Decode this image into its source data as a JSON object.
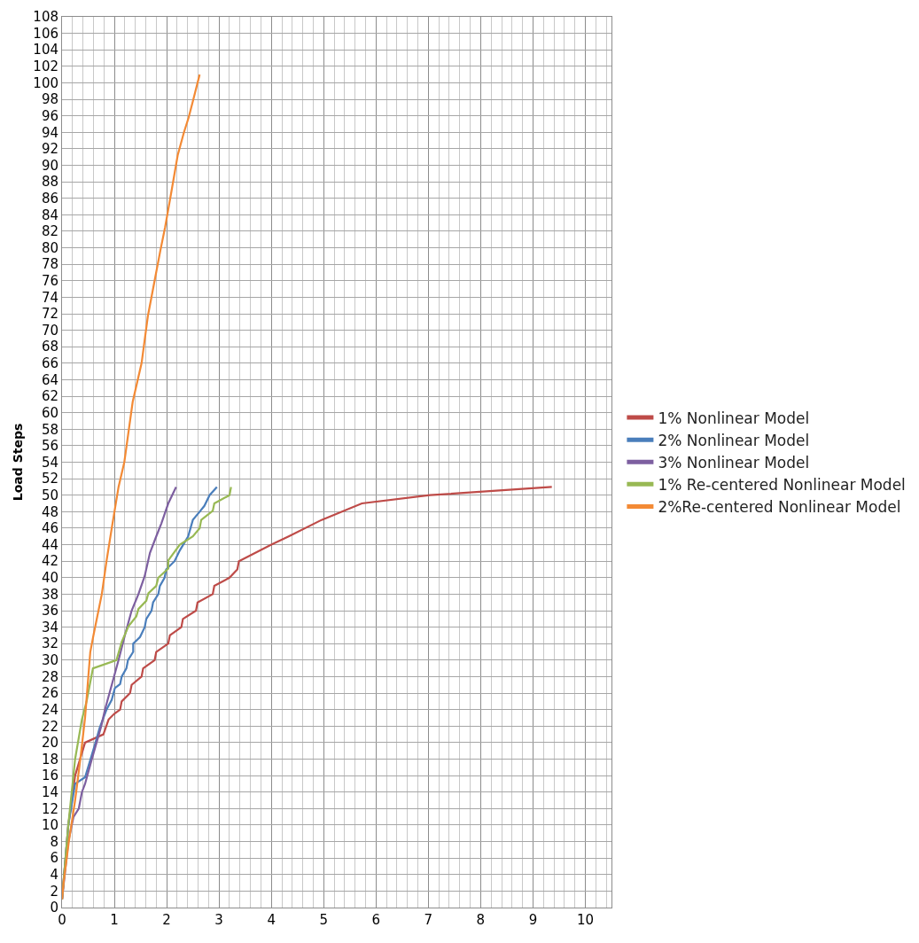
{
  "chart_data": {
    "type": "line",
    "ylabel": "Load Steps",
    "xlim": [
      0,
      10.5
    ],
    "ylim": [
      0,
      108
    ],
    "xticks": [
      0,
      {
        "value": 0.2,
        "label": null
      },
      {
        "value": 0.4,
        "label": null
      },
      {
        "value": 0.6,
        "label": null
      },
      {
        "value": 0.8,
        "label": null
      },
      1,
      {
        "value": 1.2,
        "label": null
      },
      {
        "value": 1.4,
        "label": null
      },
      {
        "value": 1.6,
        "label": null
      },
      {
        "value": 1.8,
        "label": null
      },
      2,
      {
        "value": 2.2,
        "label": null
      },
      {
        "value": 2.4,
        "label": null
      },
      {
        "value": 2.6,
        "label": null
      },
      {
        "value": 2.8,
        "label": null
      },
      3,
      {
        "value": 3.2,
        "label": null
      },
      {
        "value": 3.4,
        "label": null
      },
      {
        "value": 3.6,
        "label": null
      },
      {
        "value": 3.8,
        "label": null
      },
      4,
      {
        "value": 4.2,
        "label": null
      },
      {
        "value": 4.4,
        "label": null
      },
      {
        "value": 4.6,
        "label": null
      },
      {
        "value": 4.8,
        "label": null
      },
      5,
      {
        "value": 5.2,
        "label": null
      },
      {
        "value": 5.4,
        "label": null
      },
      {
        "value": 5.6,
        "label": null
      },
      {
        "value": 5.8,
        "label": null
      },
      6,
      {
        "value": 6.2,
        "label": null
      },
      {
        "value": 6.4,
        "label": null
      },
      {
        "value": 6.6,
        "label": null
      },
      {
        "value": 6.8,
        "label": null
      },
      7,
      {
        "value": 7.2,
        "label": null
      },
      {
        "value": 7.4,
        "label": null
      },
      {
        "value": 7.6,
        "label": null
      },
      {
        "value": 7.8,
        "label": null
      },
      8,
      {
        "value": 8.2,
        "label": null
      },
      {
        "value": 8.4,
        "label": null
      },
      {
        "value": 8.6,
        "label": null
      },
      {
        "value": 8.8,
        "label": null
      },
      9,
      {
        "value": 9.2,
        "label": null
      },
      {
        "value": 9.4,
        "label": null
      },
      {
        "value": 9.6,
        "label": null
      },
      {
        "value": 9.8,
        "label": null
      },
      10,
      {
        "value": 10.2,
        "label": null
      },
      {
        "value": 10.4,
        "label": null
      }
    ],
    "yticks": [
      0,
      2,
      4,
      6,
      8,
      10,
      12,
      14,
      16,
      18,
      20,
      22,
      24,
      26,
      28,
      30,
      32,
      34,
      36,
      38,
      40,
      42,
      44,
      46,
      48,
      50,
      52,
      54,
      56,
      58,
      60,
      62,
      64,
      66,
      68,
      70,
      72,
      74,
      76,
      78,
      80,
      82,
      84,
      86,
      88,
      90,
      92,
      94,
      96,
      98,
      100,
      102,
      104,
      106,
      108
    ],
    "grid": true,
    "legend": "right",
    "marker": "none",
    "line_style": "solid",
    "series": [
      {
        "name": "1% Nonlinear Model",
        "color": "#be4b48",
        "x": [
          0,
          0.12,
          0.25,
          0.44,
          0.79,
          0.89,
          1,
          1.11,
          1.14,
          1.3,
          1.33,
          1.52,
          1.55,
          1.77,
          1.8,
          2.03,
          2.06,
          2.28,
          2.31,
          2.56,
          2.59,
          2.88,
          2.91,
          3.2,
          3.35,
          3.38,
          4.0,
          4.33,
          4.96,
          5.73,
          7.03,
          9.36
        ],
        "values": [
          1,
          10,
          16,
          20,
          21,
          22.8,
          23.5,
          24,
          25,
          26,
          27,
          28,
          29,
          30,
          31,
          32,
          33,
          34,
          35,
          36,
          37,
          38,
          39,
          40,
          41,
          42,
          44,
          45,
          47,
          49,
          50,
          51
        ]
      },
      {
        "name": "2% Nonlinear Model",
        "color": "#4a7ebb",
        "x": [
          0,
          0.12,
          0.25,
          0.44,
          0.63,
          0.72,
          0.85,
          0.95,
          1.01,
          1.11,
          1.14,
          1.23,
          1.26,
          1.36,
          1.36,
          1.49,
          1.58,
          1.61,
          1.71,
          1.74,
          1.84,
          1.87,
          1.96,
          1.99,
          2.15,
          2.25,
          2.41,
          2.5,
          2.63,
          2.72,
          2.82,
          2.96
        ],
        "values": [
          1,
          10,
          15,
          15.8,
          19.8,
          21.8,
          24,
          25.2,
          26.6,
          27.1,
          28,
          29,
          30,
          31,
          32,
          32.8,
          34,
          35,
          36,
          37,
          38,
          39,
          40,
          41,
          42,
          43.3,
          45,
          47,
          48,
          48.7,
          50,
          51
        ]
      },
      {
        "name": "3% Nonlinear Model",
        "color": "#7d5fa0",
        "x": [
          0,
          0.12,
          0.22,
          0.32,
          0.38,
          0.44,
          0.57,
          0.66,
          0.75,
          0.82,
          0.95,
          1.08,
          1.2,
          1.33,
          1.46,
          1.58,
          1.68,
          1.8,
          1.9,
          2.03,
          2.18
        ],
        "values": [
          1,
          8,
          11,
          12,
          14,
          15,
          18,
          20,
          22,
          24,
          27,
          30,
          33,
          36,
          38,
          40.2,
          43,
          45,
          46.6,
          49,
          51
        ]
      },
      {
        "name": "1% Re-centered Nonlinear Model",
        "color": "#98b954",
        "x": [
          0,
          0.12,
          0.25,
          0.38,
          0.47,
          0.59,
          1.04,
          1.14,
          1.27,
          1.42,
          1.46,
          1.61,
          1.65,
          1.8,
          1.84,
          2.03,
          2.03,
          2.25,
          2.5,
          2.63,
          2.66,
          2.88,
          2.91,
          3.2,
          3.23
        ],
        "values": [
          1,
          10,
          18,
          22.8,
          25,
          29,
          30,
          32.2,
          34.1,
          35.3,
          36.2,
          37.2,
          38.1,
          39,
          40,
          41.1,
          42.1,
          44,
          45,
          46,
          47,
          48.1,
          49,
          50,
          51
        ]
      },
      {
        "name": "2%Re-centered Nonlinear Model",
        "color": "#f38a35",
        "x": [
          0,
          0.03,
          0.13,
          0.25,
          0.35,
          0.44,
          0.54,
          0.6,
          0.76,
          0.85,
          0.95,
          1.08,
          1.19,
          1.35,
          1.52,
          1.64,
          1.76,
          1.88,
          1.97,
          2.09,
          2.21,
          2.33,
          2.42,
          2.51,
          2.63
        ],
        "values": [
          1,
          3,
          8,
          13,
          18,
          23,
          31,
          33,
          38,
          42,
          46,
          51,
          54,
          61.3,
          66,
          71.7,
          75.7,
          79.7,
          82.5,
          86.8,
          91.2,
          94,
          95.8,
          98,
          101
        ]
      }
    ]
  }
}
